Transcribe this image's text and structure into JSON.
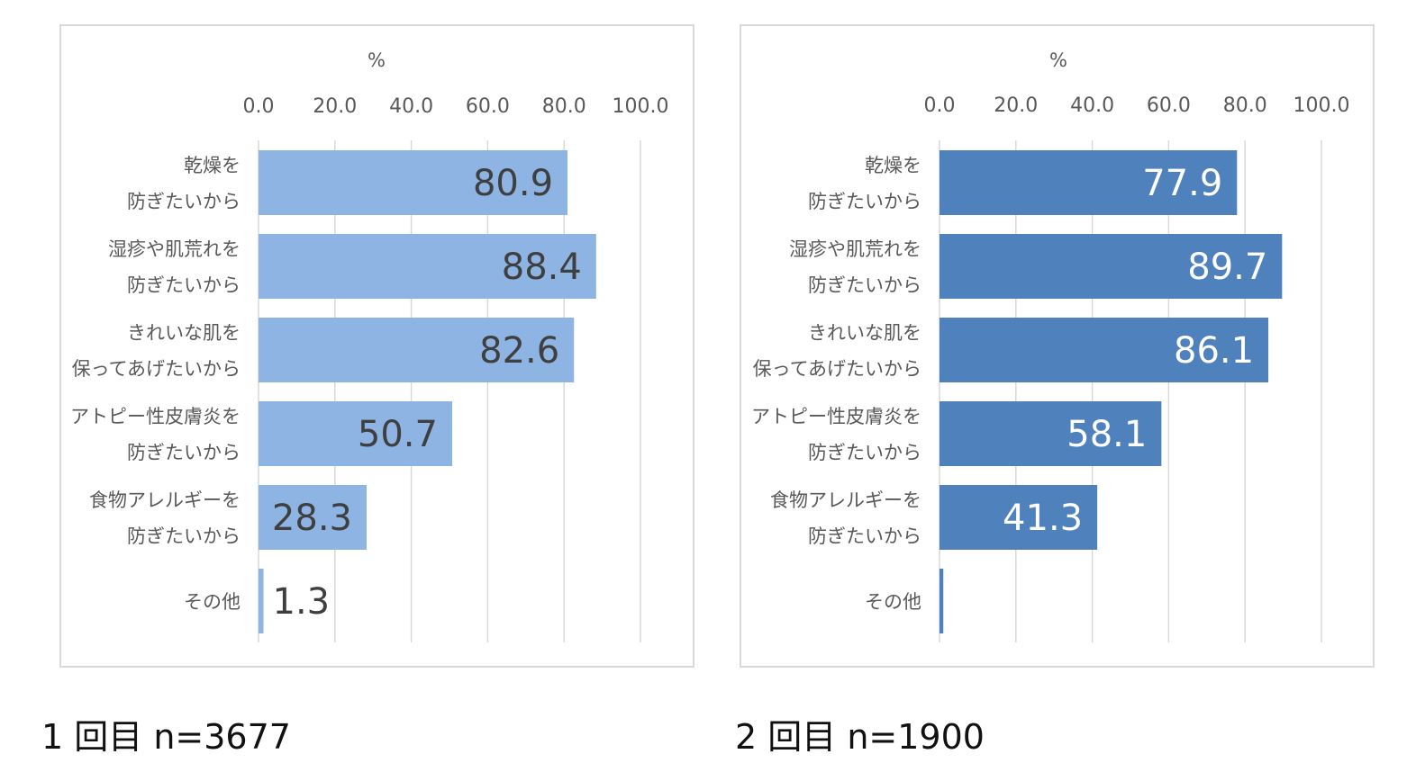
{
  "chart_data": [
    {
      "type": "bar",
      "orientation": "horizontal",
      "unit_label": "%",
      "xlim": [
        0,
        100
      ],
      "ticks": [
        "0.0",
        "20.0",
        "40.0",
        "60.0",
        "80.0",
        "100.0"
      ],
      "categories": [
        [
          "乾燥を",
          "防ぎたいから"
        ],
        [
          "湿疹や肌荒れを",
          "防ぎたいから"
        ],
        [
          "きれいな肌を",
          "保ってあげたいから"
        ],
        [
          "アトピー性皮膚炎を",
          "防ぎたいから"
        ],
        [
          "食物アレルギーを",
          "防ぎたいから"
        ],
        [
          "その他"
        ]
      ],
      "values": [
        80.9,
        88.4,
        82.6,
        50.7,
        28.3,
        1.3
      ],
      "value_labels": [
        "80.9",
        "88.4",
        "82.6",
        "50.7",
        "28.3",
        "1.3"
      ],
      "bar_color": "#8eb4e3",
      "label_color": "#3f3f3f",
      "grid": true,
      "caption": "1 回目  n=3677"
    },
    {
      "type": "bar",
      "orientation": "horizontal",
      "unit_label": "%",
      "xlim": [
        0,
        100
      ],
      "ticks": [
        "0.0",
        "20.0",
        "40.0",
        "60.0",
        "80.0",
        "100.0"
      ],
      "categories": [
        [
          "乾燥を",
          "防ぎたいから"
        ],
        [
          "湿疹や肌荒れを",
          "防ぎたいから"
        ],
        [
          "きれいな肌を",
          "保ってあげたいから"
        ],
        [
          "アトピー性皮膚炎を",
          "防ぎたいから"
        ],
        [
          "食物アレルギーを",
          "防ぎたいから"
        ],
        [
          "その他"
        ]
      ],
      "values": [
        77.9,
        89.7,
        86.1,
        58.1,
        41.3,
        1.0
      ],
      "value_labels": [
        "77.9",
        "89.7",
        "86.1",
        "58.1",
        "41.3",
        ""
      ],
      "bar_color": "#4f81bd",
      "label_color": "#ffffff",
      "grid": true,
      "caption": "2 回目  n=1900"
    }
  ]
}
